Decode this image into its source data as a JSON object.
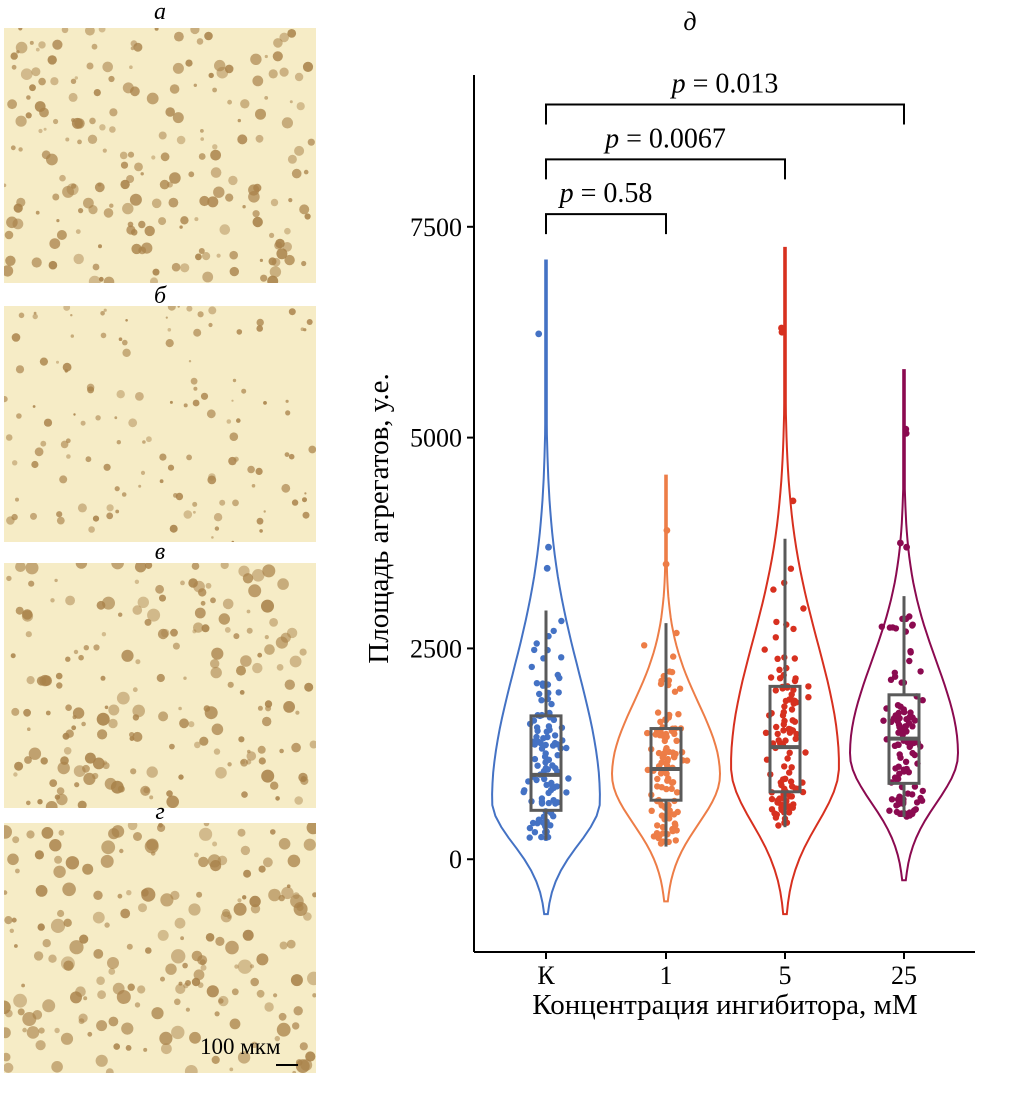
{
  "panels": [
    {
      "letter": "а",
      "density": 210,
      "size": 1.0
    },
    {
      "letter": "б",
      "density": 130,
      "size": 0.75
    },
    {
      "letter": "в",
      "density": 190,
      "size": 1.1
    },
    {
      "letter": "г",
      "density": 200,
      "size": 1.2
    }
  ],
  "scale_bar_label": "100 мкм",
  "micrograph_colors": {
    "background": "#f6ecc6",
    "aggregate": "#a9824a"
  },
  "chart_data": {
    "type": "violin",
    "panel_letter": "д",
    "xlabel": "Концентрация ингибитора, мМ",
    "ylabel": "Площадь агрегатов, у.е.",
    "categories": [
      "К",
      "1",
      "5",
      "25"
    ],
    "yticks": [
      0,
      2500,
      5000,
      7500
    ],
    "ylim": [
      -1100,
      9300
    ],
    "colors": [
      "#4472c4",
      "#ed7d47",
      "#d7301f",
      "#8b0a50"
    ],
    "groups": [
      {
        "category": "К",
        "color": "#4472c4",
        "q1": 580,
        "median": 1000,
        "q3": 1700,
        "whisker_low": 230,
        "whisker_high": 2950,
        "violin_min": -650,
        "violin_max": 7100,
        "mode": 700,
        "outliers": [
          3450,
          3700,
          6230
        ]
      },
      {
        "category": "1",
        "color": "#ed7d47",
        "q1": 700,
        "median": 1070,
        "q3": 1550,
        "whisker_low": 150,
        "whisker_high": 2800,
        "violin_min": -500,
        "violin_max": 4550,
        "mode": 1000,
        "outliers": [
          3500,
          3900
        ]
      },
      {
        "category": "5",
        "color": "#d7301f",
        "q1": 800,
        "median": 1330,
        "q3": 2050,
        "whisker_low": 380,
        "whisker_high": 3800,
        "violin_min": -650,
        "violin_max": 7250,
        "mode": 1100,
        "outliers": [
          4250,
          6250,
          6300
        ]
      },
      {
        "category": "25",
        "color": "#8b0a50",
        "q1": 900,
        "median": 1430,
        "q3": 1950,
        "whisker_low": 500,
        "whisker_high": 3120,
        "violin_min": -250,
        "violin_max": 5800,
        "mode": 1250,
        "outliers": [
          3700,
          3750,
          5050,
          5100
        ]
      }
    ],
    "comparisons": [
      {
        "from": "К",
        "to": "1",
        "label": "p = 0.58",
        "p_symbol": "p",
        "p_value": "= 0.58",
        "y": 7650
      },
      {
        "from": "К",
        "to": "5",
        "label": "p = 0.0067",
        "p_symbol": "p",
        "p_value": "= 0.0067",
        "y": 8300
      },
      {
        "from": "К",
        "to": "25",
        "label": "p = 0.013",
        "p_symbol": "p",
        "p_value": "= 0.013",
        "y": 8950
      }
    ]
  }
}
